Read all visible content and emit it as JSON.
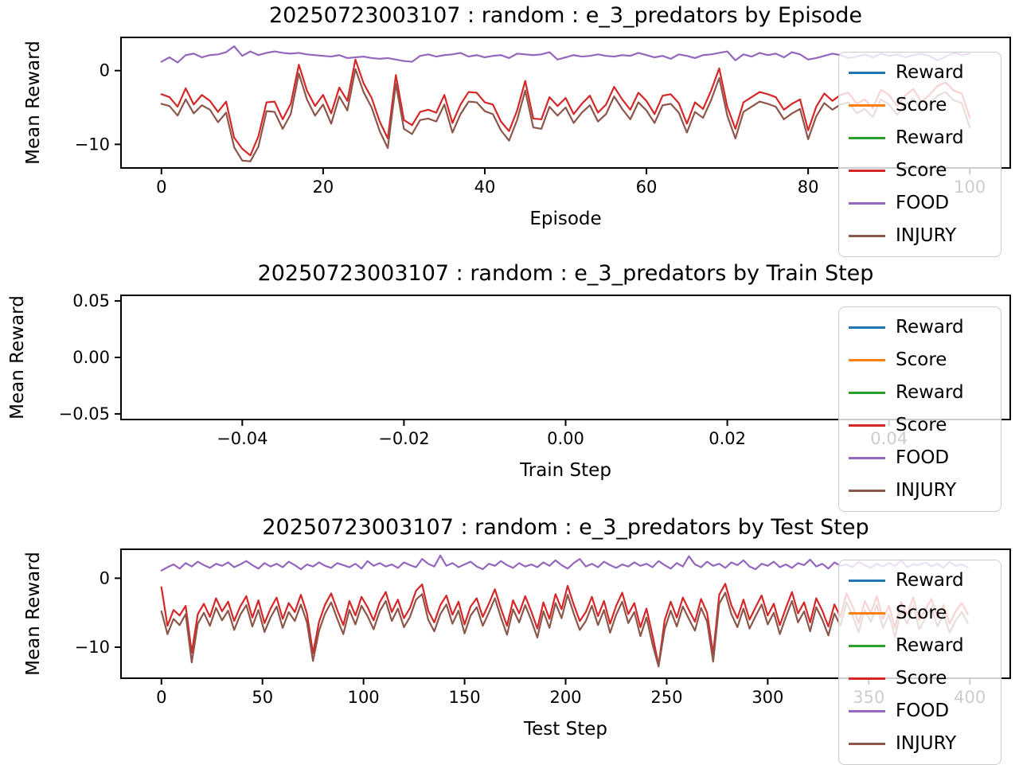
{
  "figure": {
    "background": "#ffffff"
  },
  "legend": {
    "entries": [
      {
        "label": "Reward",
        "color": "#1f77b4"
      },
      {
        "label": "Score",
        "color": "#ff7f0e"
      },
      {
        "label": "Reward",
        "color": "#2ca02c"
      },
      {
        "label": "Score",
        "color": "#d62728"
      },
      {
        "label": "FOOD",
        "color": "#9467bd"
      },
      {
        "label": "INJURY",
        "color": "#8c564b"
      }
    ]
  },
  "chart_data": [
    {
      "id": "episode",
      "type": "line",
      "title": "20250723003107 : random : e_3_predators by Episode",
      "xlabel": "Episode",
      "ylabel": "Mean Reward",
      "xlim": [
        -5,
        105
      ],
      "ylim": [
        -13.2,
        4.5
      ],
      "xticks": [
        0,
        20,
        40,
        60,
        80,
        100
      ],
      "xtick_labels": [
        "0",
        "20",
        "40",
        "60",
        "80",
        "100"
      ],
      "yticks": [
        0,
        -10
      ],
      "ytick_labels": [
        "0",
        "−10"
      ],
      "x0": 0,
      "dx": 1,
      "grid": false,
      "legend_position": "upper right",
      "series": [
        {
          "name": "Reward",
          "color": "#1f77b4",
          "values": []
        },
        {
          "name": "Score",
          "color": "#ff7f0e",
          "values": []
        },
        {
          "name": "Reward",
          "color": "#2ca02c",
          "values": []
        },
        {
          "name": "Score",
          "color": "#d62728",
          "values": [
            -3.2,
            -3.6,
            -4.9,
            -2.4,
            -4.6,
            -3.3,
            -4.1,
            -5.6,
            -4.2,
            -9.1,
            -10.6,
            -11.5,
            -8.9,
            -4.3,
            -4.2,
            -6.6,
            -4.5,
            0.8,
            -2.7,
            -4.8,
            -3.3,
            -5.8,
            -2.3,
            -4.1,
            1.5,
            -1.7,
            -3.7,
            -6.9,
            -9.2,
            -0.6,
            -6.7,
            -7.4,
            -5.6,
            -5.3,
            -5.7,
            -3.3,
            -7.1,
            -4.6,
            -2.9,
            -3.0,
            -4.3,
            -4.6,
            -6.9,
            -8.2,
            -5.4,
            -1.4,
            -6.5,
            -6.6,
            -3.6,
            -4.8,
            -3.7,
            -5.9,
            -4.5,
            -3.4,
            -5.7,
            -4.6,
            -2.2,
            -3.9,
            -5.3,
            -3.0,
            -4.1,
            -5.9,
            -3.4,
            -3.2,
            -4.4,
            -7.2,
            -4.3,
            -5.2,
            -2.7,
            0.3,
            -4.9,
            -7.9,
            -4.3,
            -3.6,
            -2.9,
            -3.2,
            -3.6,
            -5.3,
            -4.5,
            -3.9,
            -8.1,
            -4.9,
            -3.1,
            -4.1,
            -3.3,
            -3.0,
            -4.5,
            -3.9,
            -5.1,
            -2.6,
            -3.3,
            -4.8,
            -3.4,
            -2.5,
            -4.2,
            -3.3,
            -2.1,
            -1.6,
            -2.7,
            -3.1,
            -6.4
          ]
        },
        {
          "name": "FOOD",
          "color": "#9467bd",
          "values": [
            1.2,
            1.8,
            1.1,
            2.1,
            2.3,
            1.8,
            2.1,
            2.2,
            2.5,
            3.3,
            2.0,
            2.6,
            2.1,
            2.4,
            2.6,
            2.4,
            2.3,
            2.4,
            2.2,
            2.1,
            2.0,
            1.9,
            2.1,
            1.7,
            1.8,
            1.9,
            1.7,
            1.6,
            1.7,
            1.5,
            1.3,
            1.2,
            2.0,
            2.2,
            1.9,
            2.1,
            2.2,
            2.4,
            1.9,
            2.1,
            1.8,
            2.0,
            2.1,
            1.7,
            2.3,
            2.2,
            2.1,
            2.2,
            2.5,
            1.5,
            1.8,
            2.1,
            1.9,
            2.0,
            2.2,
            2.0,
            1.9,
            2.1,
            2.0,
            2.4,
            2.1,
            1.8,
            2.0,
            1.6,
            2.2,
            2.0,
            1.7,
            2.1,
            2.2,
            2.4,
            2.6,
            1.4,
            2.2,
            1.9,
            2.4,
            2.1,
            2.3,
            1.8,
            2.5,
            2.2,
            1.5,
            1.7,
            2.0,
            2.3,
            2.1,
            1.7,
            1.9,
            2.2,
            1.8,
            2.3,
            2.0,
            2.2,
            1.8,
            2.1,
            2.3,
            2.0,
            1.4,
            1.9,
            2.4,
            2.1,
            2.3
          ]
        },
        {
          "name": "INJURY",
          "color": "#8c564b",
          "values": [
            -4.5,
            -4.8,
            -6.1,
            -3.9,
            -5.8,
            -4.7,
            -5.3,
            -7.0,
            -5.7,
            -10.4,
            -12.2,
            -12.3,
            -10.3,
            -5.5,
            -5.6,
            -7.9,
            -5.9,
            -0.4,
            -3.9,
            -6.1,
            -4.6,
            -7.2,
            -3.5,
            -5.4,
            0.2,
            -2.9,
            -5.0,
            -8.2,
            -10.5,
            -1.8,
            -7.9,
            -8.6,
            -6.7,
            -6.5,
            -6.9,
            -4.6,
            -8.4,
            -5.9,
            -4.2,
            -4.3,
            -5.5,
            -5.9,
            -8.1,
            -9.5,
            -6.7,
            -2.7,
            -7.7,
            -7.9,
            -4.9,
            -6.1,
            -5.0,
            -7.1,
            -5.7,
            -4.7,
            -6.9,
            -5.9,
            -3.5,
            -5.2,
            -6.6,
            -4.3,
            -5.4,
            -7.1,
            -4.7,
            -4.5,
            -5.7,
            -8.4,
            -5.6,
            -6.4,
            -4.0,
            -1.0,
            -6.1,
            -9.2,
            -5.6,
            -4.9,
            -4.2,
            -4.5,
            -4.9,
            -6.6,
            -5.8,
            -5.2,
            -9.3,
            -6.2,
            -4.4,
            -5.3,
            -4.6,
            -4.3,
            -5.8,
            -5.2,
            -6.3,
            -3.9,
            -4.6,
            -6.0,
            -4.7,
            -3.8,
            -5.5,
            -4.6,
            -3.4,
            -2.9,
            -4.0,
            -4.4,
            -7.7
          ]
        }
      ]
    },
    {
      "id": "train-step",
      "type": "line",
      "title": "20250723003107 : random : e_3_predators by Train Step",
      "xlabel": "Train Step",
      "ylabel": "Mean Reward",
      "xlim": [
        -0.055,
        0.055
      ],
      "ylim": [
        -0.055,
        0.055
      ],
      "xticks": [
        -0.04,
        -0.02,
        0,
        0.02,
        0.04
      ],
      "xtick_labels": [
        "−0.04",
        "−0.02",
        "0.00",
        "0.02",
        "0.04"
      ],
      "yticks": [
        0.05,
        0,
        -0.05
      ],
      "ytick_labels": [
        "0.05",
        "0.00",
        "−0.05"
      ],
      "x0": 0,
      "dx": 1,
      "grid": false,
      "legend_position": "upper right",
      "series": [
        {
          "name": "Reward",
          "color": "#1f77b4",
          "values": []
        },
        {
          "name": "Score",
          "color": "#ff7f0e",
          "values": []
        },
        {
          "name": "Reward",
          "color": "#2ca02c",
          "values": []
        },
        {
          "name": "Score",
          "color": "#d62728",
          "values": []
        },
        {
          "name": "FOOD",
          "color": "#9467bd",
          "values": []
        },
        {
          "name": "INJURY",
          "color": "#8c564b",
          "values": []
        }
      ]
    },
    {
      "id": "test-step",
      "type": "line",
      "title": "20250723003107 : random : e_3_predators by Test Step",
      "xlabel": "Test Step",
      "ylabel": "Mean Reward",
      "xlim": [
        -20,
        420
      ],
      "ylim": [
        -14.5,
        4.2
      ],
      "xticks": [
        0,
        50,
        100,
        150,
        200,
        250,
        300,
        350,
        400
      ],
      "xtick_labels": [
        "0",
        "50",
        "100",
        "150",
        "200",
        "250",
        "300",
        "350",
        "400"
      ],
      "yticks": [
        0,
        -10
      ],
      "ytick_labels": [
        "0",
        "−10"
      ],
      "x0": 0,
      "dx": 3,
      "grid": false,
      "legend_position": "upper right",
      "series": [
        {
          "name": "Reward",
          "color": "#1f77b4",
          "values": []
        },
        {
          "name": "Score",
          "color": "#ff7f0e",
          "values": []
        },
        {
          "name": "Reward",
          "color": "#2ca02c",
          "values": []
        },
        {
          "name": "Score",
          "color": "#d62728",
          "values": [
            -1.3,
            -6.9,
            -4.6,
            -5.4,
            -4.0,
            -10.8,
            -5.2,
            -3.7,
            -5.6,
            -2.9,
            -4.8,
            -3.4,
            -6.2,
            -4.1,
            -2.6,
            -5.7,
            -3.2,
            -6.5,
            -4.4,
            -2.8,
            -5.9,
            -3.6,
            -4.9,
            -2.4,
            -5.1,
            -10.9,
            -6.3,
            -3.8,
            -2.2,
            -4.6,
            -6.8,
            -3.3,
            -5.4,
            -2.7,
            -4.2,
            -6.1,
            -3.5,
            -2.0,
            -4.9,
            -3.1,
            -5.8,
            -4.3,
            -1.8,
            -0.9,
            -4.7,
            -6.4,
            -3.9,
            -2.5,
            -5.3,
            -3.4,
            -6.7,
            -4.1,
            -2.9,
            -5.6,
            -3.7,
            -1.6,
            -4.4,
            -6.9,
            -3.2,
            -5.1,
            -2.6,
            -4.8,
            -7.3,
            -3.5,
            -5.9,
            -2.3,
            -4.5,
            -1.1,
            -3.8,
            -6.2,
            -4.9,
            -2.7,
            -5.5,
            -3.3,
            -6.6,
            -4.0,
            -2.1,
            -5.2,
            -3.6,
            -7.1,
            -4.4,
            -8.3,
            -12.6,
            -6.1,
            -3.4,
            -5.7,
            -2.8,
            -4.6,
            -6.3,
            -3.0,
            -5.0,
            -11.0,
            -2.4,
            -0.8,
            -3.9,
            -5.8,
            -3.1,
            -6.0,
            -4.2,
            -2.5,
            -5.4,
            -3.7,
            -6.8,
            -4.3,
            -2.0,
            -5.1,
            -3.5,
            -6.4,
            -2.9,
            -4.7,
            -7.0,
            -3.8,
            -5.6,
            -2.2,
            -4.1,
            -6.5,
            -3.3,
            -5.0,
            -2.6,
            -5.9,
            -4.0,
            -7.2,
            -3.4,
            -5.3,
            -2.8,
            -6.1,
            -4.5,
            -3.0,
            -5.7,
            -3.9,
            -6.6,
            -4.8,
            -3.6,
            -5.2
          ]
        },
        {
          "name": "FOOD",
          "color": "#9467bd",
          "values": [
            1.1,
            1.6,
            2.0,
            1.4,
            2.2,
            1.7,
            2.4,
            1.9,
            1.5,
            2.1,
            1.8,
            2.3,
            1.6,
            2.0,
            2.5,
            1.9,
            1.4,
            2.2,
            1.7,
            2.1,
            1.6,
            2.4,
            1.9,
            1.3,
            2.0,
            1.7,
            2.3,
            1.8,
            1.5,
            2.2,
            1.9,
            1.6,
            2.1,
            1.4,
            2.5,
            1.8,
            2.2,
            1.7,
            2.0,
            1.5,
            2.3,
            1.9,
            1.6,
            2.8,
            2.1,
            1.7,
            3.3,
            1.8,
            2.2,
            1.6,
            2.0,
            2.4,
            1.7,
            1.3,
            2.1,
            1.8,
            2.5,
            1.9,
            1.5,
            2.2,
            1.7,
            2.0,
            1.6,
            2.3,
            1.8,
            2.6,
            1.9,
            1.4,
            2.2,
            2.8,
            1.7,
            2.1,
            1.6,
            2.4,
            1.9,
            1.5,
            2.0,
            1.7,
            2.3,
            1.8,
            2.1,
            1.6,
            2.5,
            1.9,
            1.4,
            2.2,
            1.7,
            3.2,
            2.0,
            1.6,
            2.4,
            1.8,
            2.1,
            1.5,
            2.3,
            1.9,
            2.6,
            1.7,
            1.3,
            2.1,
            1.8,
            2.4,
            1.6,
            2.0,
            1.5,
            2.2,
            1.9,
            2.7,
            1.7,
            2.1,
            1.4,
            2.3,
            1.8,
            2.0,
            1.6,
            2.4,
            1.9,
            1.5,
            2.1,
            1.7,
            2.2,
            1.8,
            2.6,
            1.6,
            2.0,
            1.9,
            2.3,
            1.7,
            2.1,
            1.5,
            2.4,
            1.8,
            2.0,
            1.6
          ]
        },
        {
          "name": "INJURY",
          "color": "#8c564b",
          "values": [
            -4.8,
            -8.1,
            -5.9,
            -6.8,
            -5.2,
            -12.2,
            -6.6,
            -5.0,
            -6.9,
            -4.3,
            -6.1,
            -4.7,
            -7.5,
            -5.3,
            -3.9,
            -7.0,
            -4.6,
            -7.8,
            -5.7,
            -4.1,
            -7.2,
            -4.9,
            -6.2,
            -3.8,
            -6.4,
            -12.0,
            -7.6,
            -5.1,
            -3.5,
            -5.9,
            -8.1,
            -4.6,
            -6.7,
            -4.0,
            -5.5,
            -7.4,
            -4.8,
            -3.3,
            -6.2,
            -4.4,
            -7.1,
            -5.6,
            -3.1,
            -2.3,
            -6.0,
            -7.7,
            -5.2,
            -3.8,
            -6.6,
            -4.7,
            -8.0,
            -5.4,
            -4.2,
            -6.9,
            -5.0,
            -2.9,
            -5.7,
            -8.2,
            -4.5,
            -6.4,
            -3.9,
            -6.1,
            -8.6,
            -4.8,
            -7.2,
            -3.6,
            -5.8,
            -2.4,
            -5.1,
            -7.5,
            -6.2,
            -4.0,
            -6.8,
            -4.6,
            -7.9,
            -5.3,
            -3.4,
            -6.5,
            -4.9,
            -8.4,
            -5.7,
            -9.6,
            -12.8,
            -7.4,
            -4.7,
            -7.0,
            -4.1,
            -5.9,
            -7.6,
            -4.3,
            -6.3,
            -12.1,
            -3.7,
            -2.1,
            -5.2,
            -7.1,
            -4.4,
            -7.3,
            -5.5,
            -3.8,
            -6.7,
            -5.0,
            -8.1,
            -5.6,
            -3.3,
            -6.4,
            -4.8,
            -7.7,
            -4.2,
            -6.0,
            -8.3,
            -5.1,
            -6.9,
            -3.5,
            -5.4,
            -7.8,
            -4.6,
            -6.3,
            -3.9,
            -7.2,
            -5.3,
            -8.5,
            -4.7,
            -6.6,
            -4.1,
            -7.4,
            -5.8,
            -4.3,
            -7.0,
            -5.2,
            -7.9,
            -6.1,
            -4.9,
            -6.5
          ]
        }
      ]
    }
  ]
}
